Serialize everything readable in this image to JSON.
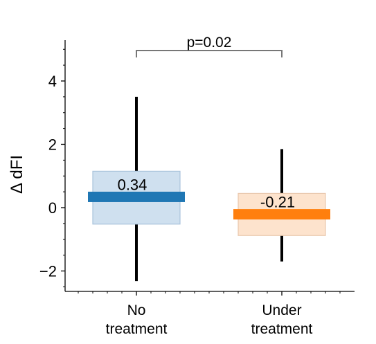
{
  "chart_data": {
    "type": "box",
    "title": "",
    "xlabel": "",
    "ylabel": "Δ dFI",
    "ylim": [
      -2.6,
      5.2
    ],
    "yticks": [
      -2,
      0,
      2,
      4
    ],
    "ytick_labels": [
      "−2",
      "0",
      "2",
      "4"
    ],
    "categories": [
      {
        "line1": "No",
        "line2": "treatment"
      },
      {
        "line1": "Under",
        "line2": "treatment"
      }
    ],
    "series": [
      {
        "median": 0.34,
        "median_label": "0.34",
        "q1": -0.52,
        "q3": 1.15,
        "whisker_low": -2.32,
        "whisker_high": 3.5,
        "color": "#1f77b4",
        "fill": "#cfe0ef",
        "box_edge": "#a9c3db"
      },
      {
        "median": -0.21,
        "median_label": "-0.21",
        "q1": -0.88,
        "q3": 0.45,
        "whisker_low": -1.7,
        "whisker_high": 1.85,
        "color": "#ff7f0e",
        "fill": "#fde3cd",
        "box_edge": "#e9c8ae"
      }
    ],
    "significance": {
      "label": "p=0.02",
      "between": [
        0,
        1
      ]
    },
    "grid": false,
    "legend": "none"
  }
}
